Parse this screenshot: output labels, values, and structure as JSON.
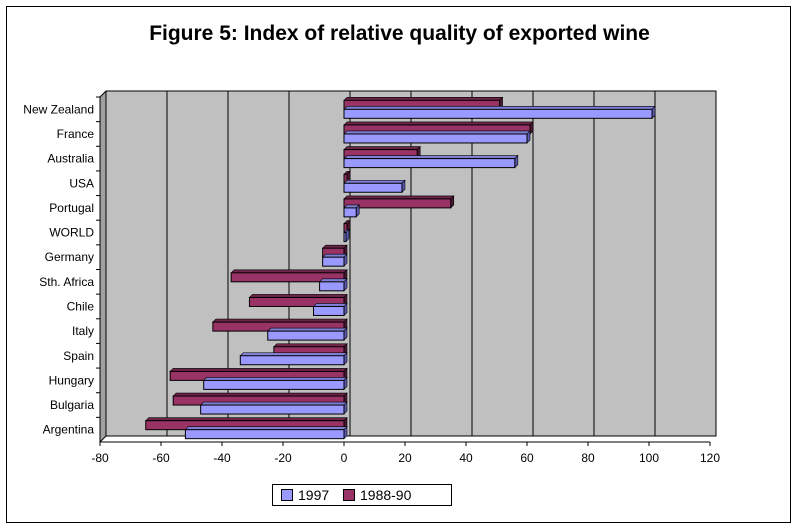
{
  "chart_data": {
    "type": "bar",
    "orientation": "horizontal",
    "title": "Figure 5: Index of relative quality of exported wine",
    "categories": [
      "New Zealand",
      "France",
      "Australia",
      "USA",
      "Portugal",
      "WORLD",
      "Germany",
      "Sth. Africa",
      "Chile",
      "Italy",
      "Spain",
      "Hungary",
      "Bulgaria",
      "Argentina"
    ],
    "series": [
      {
        "name": "1997",
        "color": "#9999ff",
        "values": [
          101,
          60,
          56,
          19,
          4,
          0,
          -7,
          -8,
          -10,
          -25,
          -34,
          -46,
          -47,
          -52
        ]
      },
      {
        "name": "1988-90",
        "color": "#993366",
        "values": [
          51,
          61,
          24,
          1,
          35,
          1,
          -7,
          -37,
          -31,
          -43,
          -23,
          -57,
          -56,
          -65
        ]
      }
    ],
    "xlim": [
      -80,
      120
    ],
    "xticks": [
      -80,
      -60,
      -40,
      -20,
      0,
      20,
      40,
      60,
      80,
      100,
      120
    ],
    "grid": true,
    "legend_position": "bottom",
    "plot_background": "#c0c0c0"
  }
}
